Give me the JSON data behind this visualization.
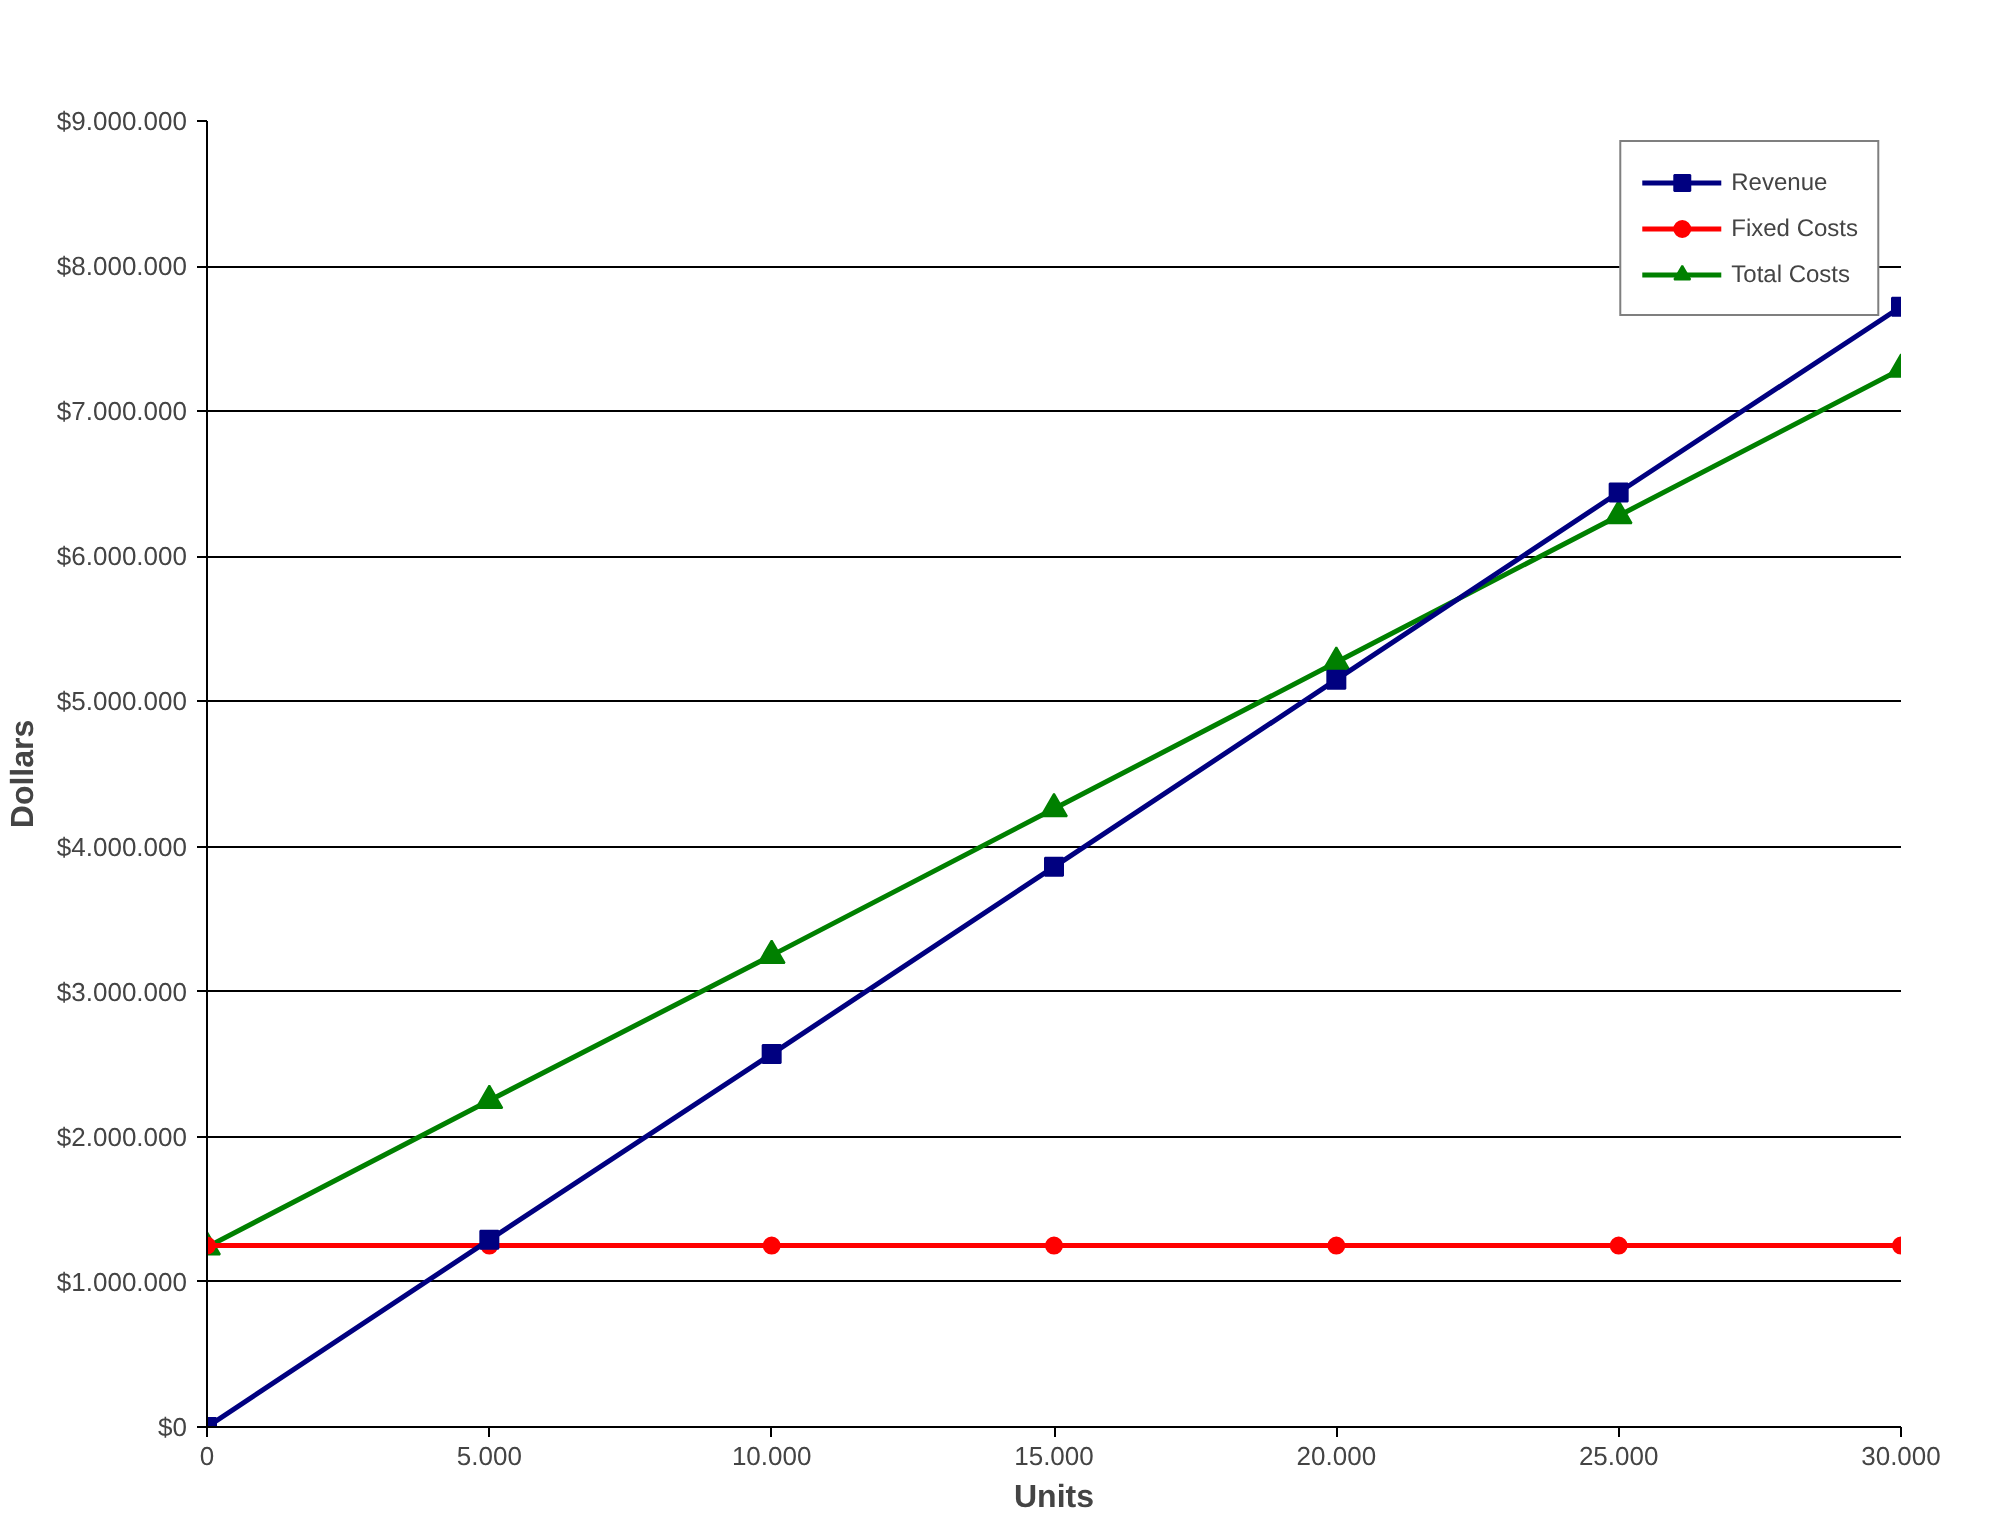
{
  "chart_data": {
    "type": "line",
    "xlabel": "Units",
    "ylabel": "Dollars",
    "x": [
      0,
      5000,
      10000,
      15000,
      20000,
      25000,
      30000
    ],
    "series": [
      {
        "name": "Revenue",
        "color": "#000080",
        "marker": "square",
        "values": [
          0,
          1290000,
          2570000,
          3860000,
          5150000,
          6440000,
          7720000
        ]
      },
      {
        "name": "Fixed Costs",
        "color": "#ff0000",
        "marker": "circle",
        "values": [
          1250000,
          1250000,
          1250000,
          1250000,
          1250000,
          1250000,
          1250000
        ]
      },
      {
        "name": "Total Costs",
        "color": "#008000",
        "marker": "triangle",
        "values": [
          1240000,
          2250000,
          3250000,
          4260000,
          5270000,
          6280000,
          7290000
        ]
      }
    ],
    "xlim": [
      0,
      30000
    ],
    "xticks": [
      0,
      {
        "value": 5000,
        "label": "5.000"
      },
      {
        "value": 10000,
        "label": "10.000"
      },
      {
        "value": 15000,
        "label": "15.000"
      },
      {
        "value": 20000,
        "label": "20.000"
      },
      {
        "value": 25000,
        "label": "25.000"
      },
      {
        "value": 30000,
        "label": "30.000"
      }
    ],
    "ylim": [
      0,
      9000000
    ],
    "yticks": [
      {
        "value": 0,
        "label": "$0"
      },
      {
        "value": 1000000,
        "label": "$1.000.000"
      },
      {
        "value": 2000000,
        "label": "$2.000.000"
      },
      {
        "value": 3000000,
        "label": "$3.000.000"
      },
      {
        "value": 4000000,
        "label": "$4.000.000"
      },
      {
        "value": 5000000,
        "label": "$5.000.000"
      },
      {
        "value": 6000000,
        "label": "$6.000.000"
      },
      {
        "value": 7000000,
        "label": "$7.000.000"
      },
      {
        "value": 8000000,
        "label": "$8.000.000"
      },
      {
        "value": 9000000,
        "label": "$9.000.000"
      }
    ],
    "grid": "y",
    "legend": "top right",
    "line_style": "solid"
  }
}
